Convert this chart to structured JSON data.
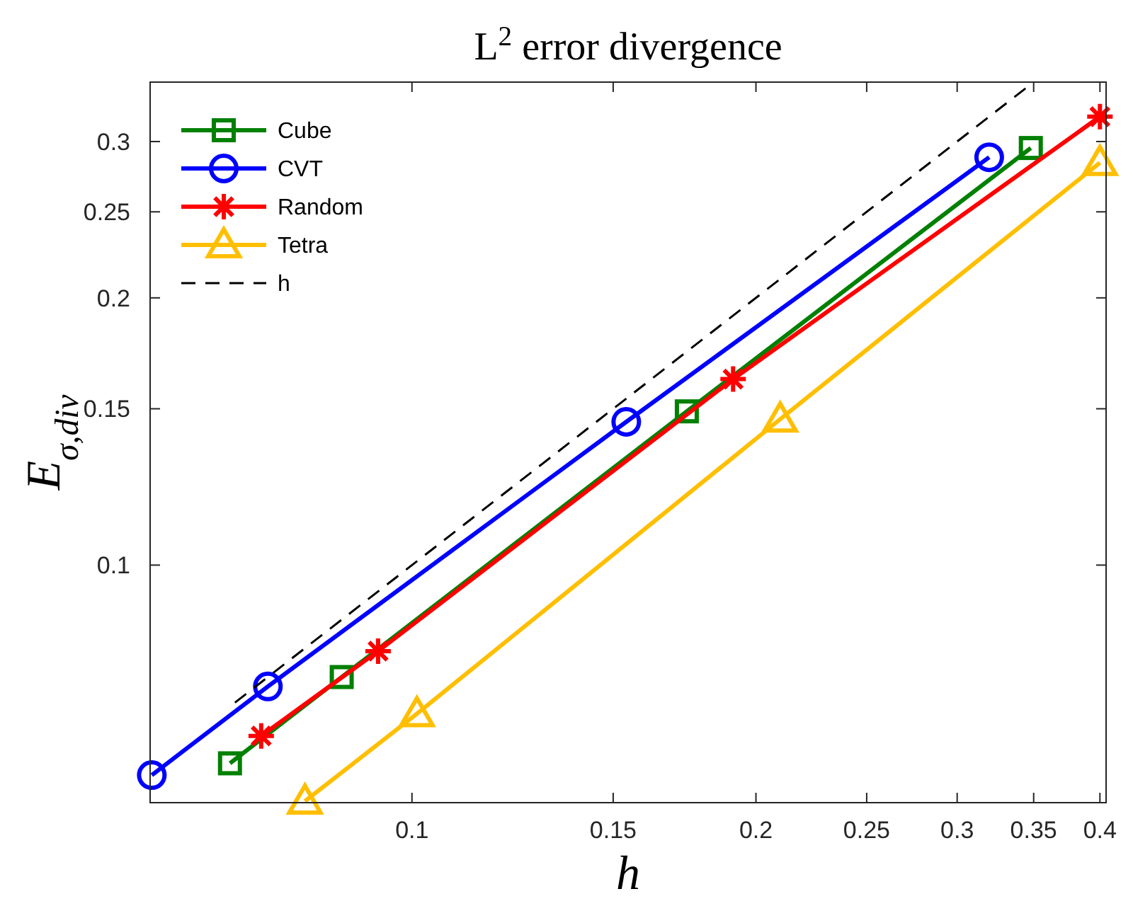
{
  "chart_data": {
    "type": "line",
    "title": "L$^{2}$ error divergence",
    "xlabel": "h",
    "ylabel": "E$_{σ,div}$",
    "log": "xy",
    "xlim": [
      0.059,
      0.405
    ],
    "ylim": [
      0.054,
      0.35
    ],
    "xticks": [
      0.1,
      0.15,
      0.2,
      0.25,
      0.3,
      0.35,
      0.4
    ],
    "yticks": [
      0.1,
      0.15,
      0.2,
      0.25,
      0.3
    ],
    "legend": "top left",
    "grid": false,
    "series": [
      {
        "name": "Cube",
        "color": "#008000",
        "marker": "square",
        "x": [
          0.0693,
          0.0868,
          0.174,
          0.348
        ],
        "values": [
          0.0598,
          0.0748,
          0.149,
          0.295
        ]
      },
      {
        "name": "CVT",
        "color": "#0000ff",
        "marker": "circle",
        "x": [
          0.0592,
          0.0748,
          0.154,
          0.32
        ],
        "values": [
          0.058,
          0.073,
          0.145,
          0.288
        ]
      },
      {
        "name": "Random",
        "color": "#ff0000",
        "marker": "cross",
        "x": [
          0.0738,
          0.0934,
          0.191,
          0.4
        ],
        "values": [
          0.0642,
          0.08,
          0.162,
          0.32
        ]
      },
      {
        "name": "Tetra",
        "color": "#ffbf00",
        "marker": "triangle",
        "x": [
          0.0806,
          0.101,
          0.21,
          0.4
        ],
        "values": [
          0.0542,
          0.068,
          0.146,
          0.284
        ]
      },
      {
        "name": "h",
        "color": "#000000",
        "marker": "none",
        "line_style": "dashed",
        "x": [
          0.07,
          0.348
        ],
        "values": [
          0.07,
          0.348
        ]
      }
    ]
  }
}
